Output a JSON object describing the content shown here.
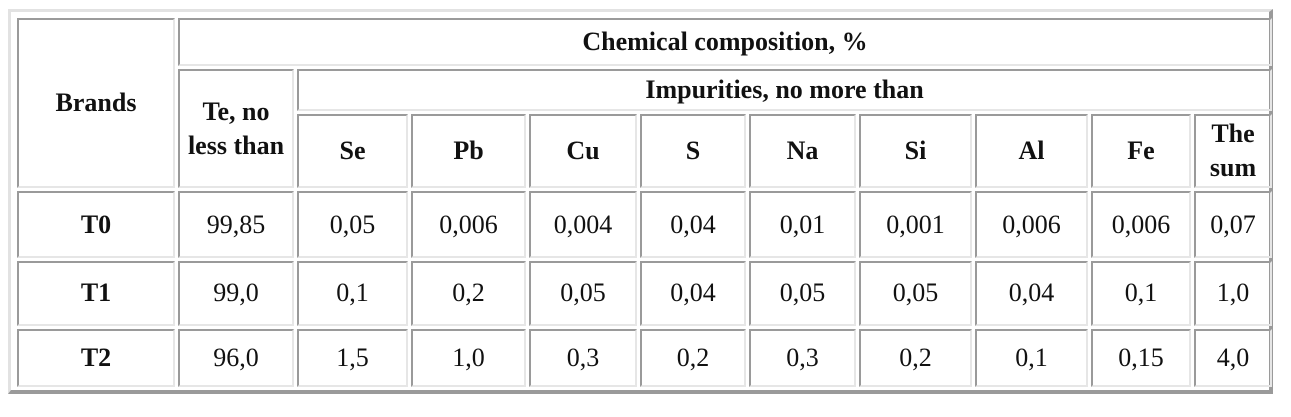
{
  "table": {
    "brands_header": "Brands",
    "chem_header": "Chemical composition, %",
    "te_header": "Te, no less than",
    "impurities_header": "Impurities, no more than",
    "impurity_columns": [
      "Se",
      "Pb",
      "Cu",
      "S",
      "Na",
      "Si",
      "Al",
      "Fe",
      "The sum"
    ],
    "rows": [
      {
        "brand": "T0",
        "te": "99,85",
        "values": [
          "0,05",
          "0,006",
          "0,004",
          "0,04",
          "0,01",
          "0,001",
          "0,006",
          "0,006",
          "0,07"
        ]
      },
      {
        "brand": "T1",
        "te": "99,0",
        "values": [
          "0,1",
          "0,2",
          "0,05",
          "0,04",
          "0,05",
          "0,05",
          "0,04",
          "0,1",
          "1,0"
        ]
      },
      {
        "brand": "T2",
        "te": "96,0",
        "values": [
          "1,5",
          "1,0",
          "0,3",
          "0,2",
          "0,3",
          "0,2",
          "0,1",
          "0,15",
          "4,0"
        ]
      }
    ]
  }
}
